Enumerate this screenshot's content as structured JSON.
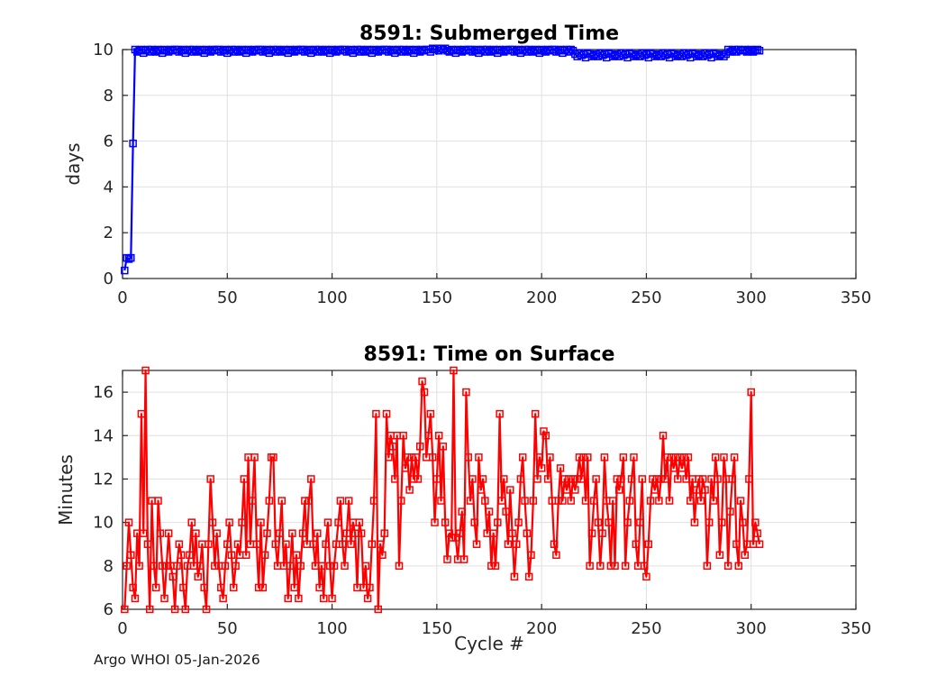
{
  "figure": {
    "footer_credit": "Argo WHOI 05-Jan-2026"
  },
  "colors": {
    "axis": "#262626",
    "grid": "#e0e0e0",
    "tick_label": "#262626",
    "title": "#000000",
    "background": "#ffffff",
    "submerged_line": "#0000ff",
    "surface_line": "#ff0000"
  },
  "chart_data": [
    {
      "type": "line",
      "title": "8591: Submerged Time",
      "ylabel": "days",
      "xlabel": "",
      "xlim": [
        0,
        350
      ],
      "ylim": [
        0,
        10
      ],
      "xticks": [
        0,
        50,
        100,
        150,
        200,
        250,
        300,
        350
      ],
      "yticks": [
        0,
        2,
        4,
        6,
        8,
        10
      ],
      "grid": true,
      "legend": "none",
      "marker": "open-square",
      "marker_size": 7,
      "line_color": "#0000ff",
      "x_start": 1,
      "values": [
        0.35,
        0.9,
        0.85,
        0.9,
        5.9,
        10,
        9.9,
        9.95,
        10,
        9.85,
        9.95,
        10,
        9.9,
        10,
        9.95,
        9.9,
        10,
        9.95,
        9.85,
        10,
        9.95,
        9.9,
        10,
        9.95,
        10,
        10,
        9.9,
        9.95,
        10,
        9.85,
        9.95,
        10,
        9.9,
        10,
        9.95,
        9.9,
        10,
        9.95,
        9.85,
        10,
        9.95,
        9.9,
        10,
        9.95,
        10,
        10,
        9.9,
        9.95,
        10,
        9.85,
        9.95,
        10,
        9.9,
        10,
        9.95,
        9.9,
        10,
        9.95,
        9.85,
        10,
        9.95,
        9.9,
        10,
        9.95,
        10,
        10,
        9.9,
        9.95,
        10,
        9.85,
        9.95,
        10,
        9.9,
        10,
        9.95,
        9.9,
        10,
        9.95,
        9.85,
        10,
        9.95,
        9.9,
        10,
        9.95,
        10,
        10,
        9.9,
        9.95,
        10,
        9.85,
        9.95,
        10,
        9.9,
        10,
        9.95,
        9.9,
        10,
        9.95,
        9.85,
        10,
        9.95,
        9.9,
        10,
        9.95,
        10,
        10,
        9.9,
        9.95,
        10,
        9.85,
        9.95,
        10,
        9.9,
        10,
        9.95,
        9.9,
        10,
        9.95,
        9.85,
        10,
        9.95,
        9.9,
        10,
        9.95,
        10,
        10,
        9.9,
        9.95,
        10,
        9.85,
        9.95,
        10,
        9.9,
        10,
        9.95,
        9.9,
        10,
        9.95,
        9.85,
        10,
        9.95,
        9.9,
        10,
        9.95,
        10,
        10,
        9.9,
        10.05,
        10,
        10.05,
        9.95,
        10.05,
        10,
        10.05,
        9.95,
        9.9,
        10,
        9.95,
        9.85,
        10,
        9.95,
        9.9,
        10,
        9.95,
        10,
        10,
        9.9,
        9.95,
        10,
        9.85,
        9.95,
        10,
        9.9,
        10,
        9.95,
        9.9,
        10,
        9.95,
        9.85,
        10,
        9.95,
        9.9,
        10,
        9.95,
        10,
        10,
        9.9,
        9.95,
        10,
        9.85,
        9.95,
        10,
        9.9,
        10,
        9.95,
        9.9,
        10,
        9.95,
        9.85,
        10,
        9.95,
        9.9,
        10,
        9.95,
        10,
        10,
        9.9,
        9.95,
        10,
        9.85,
        9.95,
        10,
        9.9,
        10,
        9.95,
        9.8,
        9.7,
        9.85,
        9.75,
        9.8,
        9.65,
        9.85,
        9.8,
        9.7,
        9.75,
        9.8,
        9.7,
        9.85,
        9.75,
        9.8,
        9.65,
        9.85,
        9.8,
        9.7,
        9.75,
        9.8,
        9.7,
        9.85,
        9.75,
        9.8,
        9.65,
        9.85,
        9.8,
        9.7,
        9.75,
        9.8,
        9.7,
        9.85,
        9.75,
        9.8,
        9.65,
        9.85,
        9.8,
        9.7,
        9.75,
        9.8,
        9.7,
        9.85,
        9.75,
        9.8,
        9.65,
        9.85,
        9.8,
        9.7,
        9.75,
        9.8,
        9.7,
        9.85,
        9.75,
        9.8,
        9.65,
        9.85,
        9.8,
        9.7,
        9.75,
        9.8,
        9.7,
        9.85,
        9.75,
        9.8,
        9.65,
        9.85,
        9.8,
        9.7,
        9.75,
        9.8,
        9.7,
        9.8,
        10,
        9.9,
        9.95,
        10,
        9.9,
        10,
        9.95,
        9.95,
        10,
        9.9,
        9.95,
        10,
        9.9,
        9.95,
        10,
        9.95
      ]
    },
    {
      "type": "line",
      "title": "8591: Time on Surface",
      "ylabel": "Minutes",
      "xlabel": "Cycle #",
      "xlim": [
        0,
        350
      ],
      "ylim": [
        6,
        17
      ],
      "xticks": [
        0,
        50,
        100,
        150,
        200,
        250,
        300,
        350
      ],
      "yticks": [
        6,
        8,
        10,
        12,
        14,
        16
      ],
      "grid": true,
      "legend": "none",
      "marker": "open-square",
      "marker_size": 7,
      "line_color": "#ff0000",
      "x_start": 1,
      "values": [
        6,
        8,
        10,
        8.5,
        7,
        6.5,
        9.5,
        8,
        15,
        9.5,
        17,
        9,
        6,
        11,
        8,
        7,
        11,
        9.5,
        8,
        6.5,
        8,
        9.5,
        8,
        7.5,
        6,
        8,
        9,
        8.5,
        7,
        6,
        8,
        8.5,
        10,
        8,
        9.5,
        7.5,
        8,
        9,
        7,
        6,
        9,
        12,
        10,
        8,
        9.5,
        8,
        7,
        6.5,
        8,
        9,
        10,
        8.5,
        7,
        8,
        9,
        8.5,
        10,
        12,
        8.5,
        13,
        9,
        11,
        13,
        9,
        7,
        10,
        7,
        8.5,
        9.5,
        11,
        13,
        13,
        9,
        8,
        9.5,
        11,
        8,
        9,
        6.5,
        8,
        9.5,
        7,
        8.5,
        6.5,
        8,
        9.5,
        11,
        9,
        11,
        12,
        9,
        8,
        9.5,
        7,
        8,
        6.5,
        9,
        10,
        8,
        6.5,
        8,
        9,
        10,
        11,
        9,
        8,
        9.5,
        11,
        9,
        10,
        9.5,
        7,
        10,
        9.5,
        7,
        8,
        6.5,
        7,
        9,
        11,
        15,
        6,
        9,
        8.5,
        9.5,
        15,
        13,
        14,
        13.5,
        12,
        14,
        8,
        11,
        14,
        12.5,
        13,
        11.5,
        13,
        12,
        13,
        12,
        13.5,
        16.5,
        16,
        13,
        14,
        15,
        13,
        10,
        12,
        14,
        11,
        13.5,
        10,
        8.3,
        9.5,
        9.3,
        17,
        9.3,
        8.3,
        9.5,
        10.5,
        8.3,
        16,
        13,
        11,
        12,
        10,
        9,
        13,
        11.5,
        12,
        11,
        9.5,
        10.5,
        8,
        9.5,
        8,
        10,
        15,
        11,
        12,
        10.5,
        9,
        11.5,
        9.5,
        7.5,
        9,
        10,
        12,
        13,
        11,
        9.5,
        7.5,
        8.5,
        11,
        15,
        12,
        13,
        12.5,
        14.2,
        14,
        12,
        13,
        11,
        9,
        8.5,
        11,
        12.5,
        11,
        12,
        11.5,
        12,
        11,
        12,
        11.5,
        12,
        13,
        12,
        13,
        11,
        13,
        8,
        9.5,
        11,
        12,
        10,
        8,
        9.5,
        13,
        11,
        10,
        8,
        11,
        8,
        12,
        11.5,
        12,
        13,
        8,
        10,
        11,
        12,
        13,
        9,
        8,
        10,
        12,
        8,
        7.5,
        9,
        11,
        12,
        11.5,
        12,
        11,
        12,
        14,
        12,
        13,
        11,
        13,
        12.5,
        13,
        12,
        13,
        12.5,
        13,
        12,
        13,
        11,
        12,
        10,
        11.5,
        12,
        11,
        12,
        11.5,
        8,
        10,
        12,
        11,
        13,
        12,
        8.5,
        10,
        13,
        12,
        8,
        10.5,
        12,
        13,
        9,
        8,
        11,
        10,
        8.5,
        9,
        12,
        16,
        9,
        10,
        9.5,
        9
      ]
    }
  ]
}
